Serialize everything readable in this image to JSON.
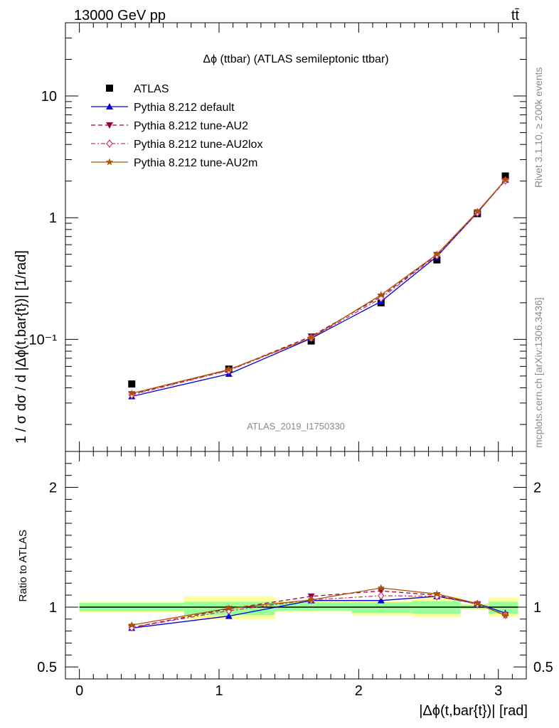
{
  "header": {
    "energy": "13000 GeV pp",
    "process": "tt̄",
    "rivet": "Rivet 3.1.10, ≥ 200k events",
    "mcplots": "mcplots.cern.ch [arXiv:1306.3436]",
    "analysis_id": "ATLAS_2019_I1750330"
  },
  "chart_data": [
    {
      "type": "line",
      "title": "Δϕ (ttbar) (ATLAS semileptonic ttbar)",
      "xlabel": "|Δϕ(t,bar{t})| [rad]",
      "ylabel": "1 / σ dσ / d |Δϕ(t,bar{t})| [1/rad]",
      "yscale": "log",
      "xlim": [
        -0.1,
        3.2
      ],
      "ylim": [
        0.012,
        40
      ],
      "ytick_labels": [
        "10⁻¹",
        "1",
        "10"
      ],
      "legend_position": "top-left",
      "x": [
        0.375,
        1.07,
        1.66,
        2.16,
        2.56,
        2.85,
        3.05
      ],
      "series": [
        {
          "name": "ATLAS",
          "color": "#000000",
          "marker": "square",
          "values": [
            0.043,
            0.057,
            0.097,
            0.2,
            0.45,
            1.08,
            2.2
          ]
        },
        {
          "name": "Pythia 8.212 default",
          "color": "#0000dd",
          "marker": "triangle-up",
          "dash": "solid",
          "values": [
            0.034,
            0.052,
            0.102,
            0.205,
            0.48,
            1.1,
            2.05
          ]
        },
        {
          "name": "Pythia 8.212 tune-AU2",
          "color": "#990044",
          "marker": "triangle-down",
          "dash": "dashed",
          "values": [
            0.0355,
            0.056,
            0.106,
            0.225,
            0.495,
            1.11,
            2.02
          ]
        },
        {
          "name": "Pythia 8.212 tune-AU2lox",
          "color": "#cc3366",
          "marker": "diamond-open",
          "dash": "dashdot",
          "values": [
            0.035,
            0.0555,
            0.103,
            0.218,
            0.49,
            1.1,
            2.02
          ]
        },
        {
          "name": "Pythia 8.212 tune-AU2m",
          "color": "#aa5500",
          "marker": "star",
          "dash": "solid",
          "values": [
            0.036,
            0.0565,
            0.103,
            0.232,
            0.5,
            1.12,
            2.04
          ]
        }
      ]
    },
    {
      "type": "line",
      "xlabel": "|Δϕ(t,bar{t})| [rad]",
      "ylabel": "Ratio to ATLAS",
      "xlim": [
        -0.1,
        3.2
      ],
      "ylim": [
        0.4,
        2.3
      ],
      "xticks": [
        0,
        1,
        2,
        3
      ],
      "yticks": [
        0.5,
        1,
        2
      ],
      "bins": [
        [
          0,
          0.75
        ],
        [
          0.75,
          1.4
        ],
        [
          1.4,
          1.95
        ],
        [
          1.95,
          2.38
        ],
        [
          2.38,
          2.73
        ],
        [
          2.73,
          2.93
        ],
        [
          2.93,
          3.1416
        ]
      ],
      "band_outer": [
        [
          0.955,
          1.045
        ],
        [
          0.9,
          1.09
        ],
        [
          0.96,
          1.05
        ],
        [
          0.93,
          1.05
        ],
        [
          0.915,
          1.09
        ],
        [
          0.98,
          1.03
        ],
        [
          0.92,
          1.08
        ]
      ],
      "band_inner": [
        [
          0.965,
          1.035
        ],
        [
          0.935,
          1.045
        ],
        [
          0.97,
          1.04
        ],
        [
          0.95,
          1.04
        ],
        [
          0.945,
          1.05
        ],
        [
          0.985,
          1.02
        ],
        [
          0.945,
          1.045
        ]
      ],
      "x": [
        0.375,
        1.07,
        1.66,
        2.16,
        2.56,
        2.85,
        3.05
      ],
      "series": [
        {
          "name": "Pythia 8.212 default",
          "values": [
            0.825,
            0.925,
            1.055,
            1.055,
            1.09,
            1.03,
            0.95
          ]
        },
        {
          "name": "Pythia 8.212 tune-AU2",
          "values": [
            0.83,
            0.985,
            1.09,
            1.135,
            1.1,
            1.025,
            0.935
          ]
        },
        {
          "name": "Pythia 8.212 tune-AU2lox",
          "values": [
            0.83,
            0.97,
            1.06,
            1.095,
            1.09,
            1.025,
            0.935
          ]
        },
        {
          "name": "Pythia 8.212 tune-AU2m",
          "values": [
            0.85,
            0.99,
            1.06,
            1.16,
            1.11,
            1.03,
            0.93
          ]
        }
      ]
    }
  ]
}
